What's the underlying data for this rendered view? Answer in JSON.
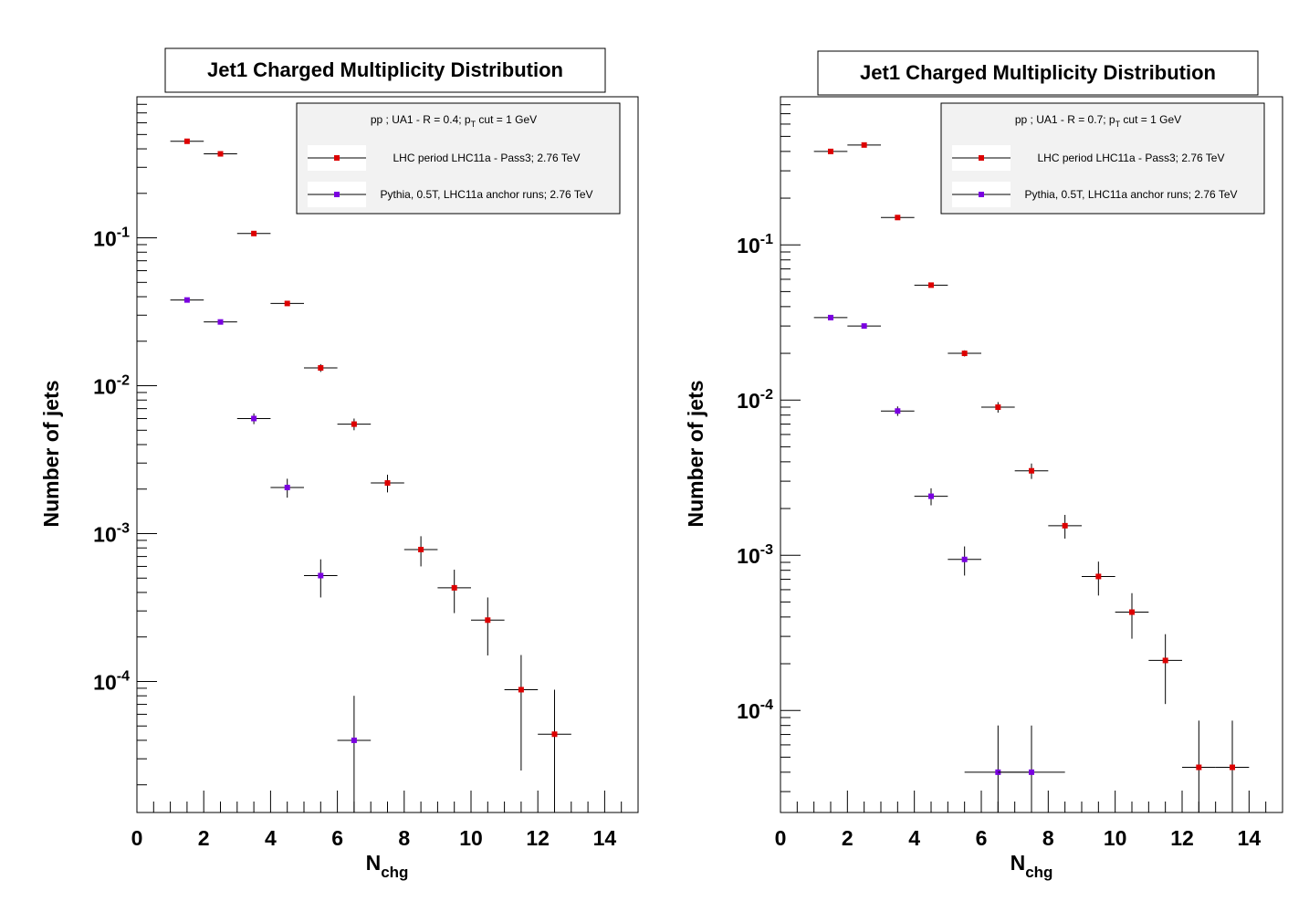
{
  "chart_data": [
    {
      "type": "scatter",
      "title": "Jet1 Charged Multiplicity Distribution",
      "xlabel": "N",
      "xlabel_sub": "chg",
      "ylabel": "Number of jets",
      "xlim": [
        0,
        15
      ],
      "ylim": [
        1.3e-05,
        0.9
      ],
      "yscale": "log",
      "x_ticks": [
        "0",
        "2",
        "4",
        "6",
        "8",
        "10",
        "12",
        "14"
      ],
      "y_ticks": [
        {
          "value": 0.1,
          "base": "10",
          "exp": "-1"
        },
        {
          "value": 0.01,
          "base": "10",
          "exp": "-2"
        },
        {
          "value": 0.001,
          "base": "10",
          "exp": "-3"
        },
        {
          "value": 0.0001,
          "base": "10",
          "exp": "-4"
        }
      ],
      "legend_position": "top-right",
      "legend_header": {
        "pre": "pp ; UA1 - R = 0.4; p",
        "sub": "T",
        "post": " cut = 1 GeV"
      },
      "series": [
        {
          "name": "LHC period LHC11a - Pass3; 2.76 TeV",
          "color": "#dd0000",
          "points": [
            {
              "x": 1.5,
              "y": 0.45,
              "err": 0.006
            },
            {
              "x": 2.5,
              "y": 0.37,
              "err": 0.005
            },
            {
              "x": 3.5,
              "y": 0.107,
              "err": 0.002
            },
            {
              "x": 4.5,
              "y": 0.036,
              "err": 0.0012
            },
            {
              "x": 5.5,
              "y": 0.0132,
              "err": 0.0008
            },
            {
              "x": 6.5,
              "y": 0.0055,
              "err": 0.0005
            },
            {
              "x": 7.5,
              "y": 0.0022,
              "err": 0.0003
            },
            {
              "x": 8.5,
              "y": 0.00078,
              "err": 0.00018
            },
            {
              "x": 9.5,
              "y": 0.00043,
              "err": 0.00014
            },
            {
              "x": 10.5,
              "y": 0.00026,
              "err": 0.00011
            },
            {
              "x": 11.5,
              "y": 8.8e-05,
              "err": 6.3e-05
            },
            {
              "x": 12.5,
              "y": 4.4e-05,
              "err": 4.4e-05
            }
          ]
        },
        {
          "name": "Pythia, 0.5T, LHC11a anchor runs; 2.76 TeV",
          "color": "#7a00e0",
          "points": [
            {
              "x": 1.5,
              "y": 0.038,
              "err": 0.001
            },
            {
              "x": 2.5,
              "y": 0.027,
              "err": 0.0009
            },
            {
              "x": 3.5,
              "y": 0.006,
              "err": 0.0005
            },
            {
              "x": 4.5,
              "y": 0.00205,
              "err": 0.0003
            },
            {
              "x": 5.5,
              "y": 0.00052,
              "err": 0.00015
            },
            {
              "x": 6.5,
              "y": 4e-05,
              "err": 4e-05
            }
          ]
        }
      ]
    },
    {
      "type": "scatter",
      "title": "Jet1 Charged Multiplicity Distribution",
      "xlabel": "N",
      "xlabel_sub": "chg",
      "ylabel": "Number of jets",
      "xlim": [
        0,
        15
      ],
      "ylim": [
        2.2e-05,
        0.9
      ],
      "yscale": "log",
      "x_ticks": [
        "0",
        "2",
        "4",
        "6",
        "8",
        "10",
        "12",
        "14"
      ],
      "y_ticks": [
        {
          "value": 0.1,
          "base": "10",
          "exp": "-1"
        },
        {
          "value": 0.01,
          "base": "10",
          "exp": "-2"
        },
        {
          "value": 0.001,
          "base": "10",
          "exp": "-3"
        },
        {
          "value": 0.0001,
          "base": "10",
          "exp": "-4"
        }
      ],
      "legend_position": "top-right",
      "legend_header": {
        "pre": "pp ; UA1 - R = 0.7; p",
        "sub": "T",
        "post": " cut = 1 GeV"
      },
      "series": [
        {
          "name": "LHC period LHC11a - Pass3; 2.76 TeV",
          "color": "#dd0000",
          "points": [
            {
              "x": 1.5,
              "y": 0.4,
              "err": 0.006
            },
            {
              "x": 2.5,
              "y": 0.44,
              "err": 0.006
            },
            {
              "x": 3.5,
              "y": 0.15,
              "err": 0.003
            },
            {
              "x": 4.5,
              "y": 0.055,
              "err": 0.0015
            },
            {
              "x": 5.5,
              "y": 0.02,
              "err": 0.0009
            },
            {
              "x": 6.5,
              "y": 0.009,
              "err": 0.0007
            },
            {
              "x": 7.5,
              "y": 0.0035,
              "err": 0.0004
            },
            {
              "x": 8.5,
              "y": 0.00155,
              "err": 0.00027
            },
            {
              "x": 9.5,
              "y": 0.00073,
              "err": 0.00018
            },
            {
              "x": 10.5,
              "y": 0.00043,
              "err": 0.00014
            },
            {
              "x": 11.5,
              "y": 0.00021,
              "err": 0.0001
            },
            {
              "x": 12.5,
              "y": 4.3e-05,
              "err": 4.3e-05
            },
            {
              "x": 13.5,
              "y": 4.3e-05,
              "err": 4.3e-05
            }
          ]
        },
        {
          "name": "Pythia, 0.5T, LHC11a anchor runs; 2.76 TeV",
          "color": "#7a00e0",
          "points": [
            {
              "x": 1.5,
              "y": 0.034,
              "err": 0.001
            },
            {
              "x": 2.5,
              "y": 0.03,
              "err": 0.0009
            },
            {
              "x": 3.5,
              "y": 0.0085,
              "err": 0.0006
            },
            {
              "x": 4.5,
              "y": 0.0024,
              "err": 0.0003
            },
            {
              "x": 5.5,
              "y": 0.00094,
              "err": 0.0002
            },
            {
              "x": 6.5,
              "y": 4e-05,
              "err": 4e-05,
              "xerr": 1.0
            },
            {
              "x": 7.5,
              "y": 4e-05,
              "err": 4e-05,
              "xerr": 1.0
            }
          ]
        }
      ]
    }
  ]
}
